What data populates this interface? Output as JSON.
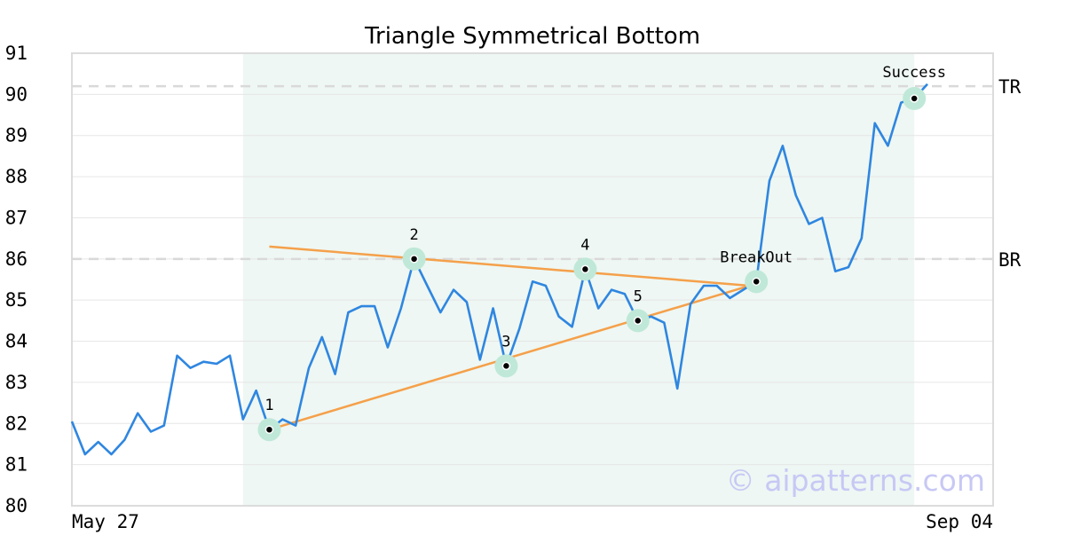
{
  "chart_data": {
    "type": "line",
    "title": "Triangle Symmetrical Bottom",
    "xlabel": "",
    "ylabel": "",
    "ylim": [
      80,
      91
    ],
    "y_ticks": [
      80,
      81,
      82,
      83,
      84,
      85,
      86,
      87,
      88,
      89,
      90,
      91
    ],
    "x_tick_labels": [
      "May 27",
      "Sep 04"
    ],
    "grid": "horizontal",
    "series": [
      {
        "color": "#2f86e0",
        "values": [
          82.05,
          81.25,
          81.55,
          81.25,
          81.6,
          82.25,
          81.8,
          81.95,
          83.65,
          83.35,
          83.5,
          83.45,
          83.65,
          82.1,
          82.8,
          81.85,
          82.1,
          81.95,
          83.35,
          84.1,
          83.2,
          84.7,
          84.85,
          84.85,
          83.85,
          84.8,
          86.0,
          85.35,
          84.7,
          85.25,
          84.95,
          83.55,
          84.8,
          83.4,
          84.3,
          85.45,
          85.35,
          84.6,
          84.35,
          85.75,
          84.8,
          85.25,
          85.15,
          84.5,
          84.6,
          84.45,
          82.85,
          84.9,
          85.35,
          85.35,
          85.05,
          85.25,
          85.45,
          87.9,
          88.75,
          87.55,
          86.85,
          87.0,
          85.7,
          85.8,
          86.5,
          89.3,
          88.75,
          89.8,
          89.9,
          90.25
        ]
      }
    ],
    "shaded_region": {
      "from_index": 13,
      "to_index": 64,
      "color": "#eef7f3"
    },
    "levels": [
      {
        "label": "TR",
        "value": 90.2
      },
      {
        "label": "BR",
        "value": 86.0
      }
    ],
    "pattern_points": [
      {
        "label": "1",
        "index": 15,
        "value": 81.85
      },
      {
        "label": "2",
        "index": 26,
        "value": 86.0
      },
      {
        "label": "3",
        "index": 33,
        "value": 83.4
      },
      {
        "label": "4",
        "index": 39,
        "value": 85.75
      },
      {
        "label": "5",
        "index": 43,
        "value": 84.5
      },
      {
        "label": "BreakOut",
        "index": 52,
        "value": 85.45
      },
      {
        "label": "Success",
        "index": 64,
        "value": 89.9
      }
    ],
    "trendlines": [
      {
        "from_index": 15,
        "from_value": 86.3,
        "to_index": 51.5,
        "to_value": 85.35
      },
      {
        "from_index": 15,
        "from_value": 81.85,
        "to_index": 51.5,
        "to_value": 85.35
      }
    ],
    "trendline_color": "#f5a04a",
    "marker_color": "#bfe8d8",
    "watermark": "© aipatterns.com"
  }
}
